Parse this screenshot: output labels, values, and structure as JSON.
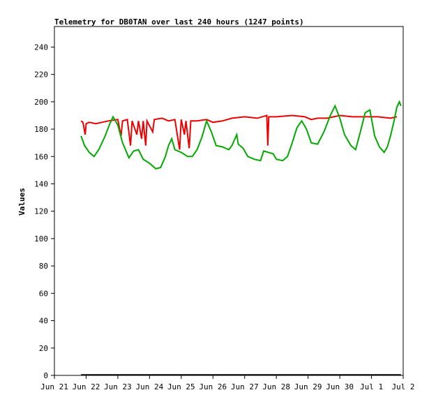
{
  "chart_data": {
    "type": "line",
    "title": "Telemetry for DB0TAN over last 240 hours (1247 points)",
    "xlabel": "",
    "ylabel": "Values",
    "xlim_days": [
      0,
      11
    ],
    "ylim": [
      0,
      255
    ],
    "y_ticks": [
      0,
      20,
      40,
      60,
      80,
      100,
      120,
      140,
      160,
      180,
      200,
      220,
      240
    ],
    "x_ticks": [
      {
        "day": 0,
        "label": "Jun 21"
      },
      {
        "day": 1,
        "label": "Jun 22"
      },
      {
        "day": 2,
        "label": "Jun 23"
      },
      {
        "day": 3,
        "label": "Jun 24"
      },
      {
        "day": 4,
        "label": "Jun 25"
      },
      {
        "day": 5,
        "label": "Jun 26"
      },
      {
        "day": 6,
        "label": "Jun 27"
      },
      {
        "day": 7,
        "label": "Jun 28"
      },
      {
        "day": 8,
        "label": "Jun 29"
      },
      {
        "day": 9,
        "label": "Jun 30"
      },
      {
        "day": 10,
        "label": "Jul 1"
      },
      {
        "day": 11,
        "label": "Jul 2"
      }
    ],
    "grid": false,
    "series": [
      {
        "color": "#ee0000",
        "points": [
          [
            0.84,
            186
          ],
          [
            0.9,
            185
          ],
          [
            0.97,
            176
          ],
          [
            1.0,
            184
          ],
          [
            1.1,
            185
          ],
          [
            1.3,
            184
          ],
          [
            1.5,
            185
          ],
          [
            1.7,
            186
          ],
          [
            2.0,
            187
          ],
          [
            2.1,
            175
          ],
          [
            2.15,
            186
          ],
          [
            2.3,
            187
          ],
          [
            2.4,
            168
          ],
          [
            2.45,
            186
          ],
          [
            2.6,
            176
          ],
          [
            2.65,
            186
          ],
          [
            2.75,
            173
          ],
          [
            2.8,
            186
          ],
          [
            2.88,
            168
          ],
          [
            2.92,
            186
          ],
          [
            3.1,
            178
          ],
          [
            3.15,
            187
          ],
          [
            3.4,
            188
          ],
          [
            3.6,
            186
          ],
          [
            3.8,
            187
          ],
          [
            3.95,
            165
          ],
          [
            4.0,
            187
          ],
          [
            4.1,
            176
          ],
          [
            4.15,
            186
          ],
          [
            4.25,
            166
          ],
          [
            4.3,
            186
          ],
          [
            4.5,
            186
          ],
          [
            4.8,
            187
          ],
          [
            5.0,
            185
          ],
          [
            5.3,
            186
          ],
          [
            5.6,
            188
          ],
          [
            6.0,
            189
          ],
          [
            6.4,
            188
          ],
          [
            6.7,
            190
          ],
          [
            6.73,
            168
          ],
          [
            6.76,
            189
          ],
          [
            7.0,
            189
          ],
          [
            7.5,
            190
          ],
          [
            7.9,
            189
          ],
          [
            8.1,
            187
          ],
          [
            8.3,
            188
          ],
          [
            8.6,
            188
          ],
          [
            9.0,
            190
          ],
          [
            9.4,
            189
          ],
          [
            9.8,
            189
          ],
          [
            10.2,
            189
          ],
          [
            10.6,
            188
          ],
          [
            10.8,
            189
          ]
        ]
      },
      {
        "color": "#00aa00",
        "points": [
          [
            0.84,
            175
          ],
          [
            0.95,
            168
          ],
          [
            1.1,
            163
          ],
          [
            1.25,
            160
          ],
          [
            1.4,
            165
          ],
          [
            1.6,
            175
          ],
          [
            1.75,
            184
          ],
          [
            1.85,
            189
          ],
          [
            2.0,
            183
          ],
          [
            2.15,
            170
          ],
          [
            2.35,
            159
          ],
          [
            2.5,
            164
          ],
          [
            2.65,
            165
          ],
          [
            2.8,
            158
          ],
          [
            3.0,
            155
          ],
          [
            3.2,
            151
          ],
          [
            3.35,
            152
          ],
          [
            3.5,
            160
          ],
          [
            3.6,
            168
          ],
          [
            3.7,
            173
          ],
          [
            3.8,
            165
          ],
          [
            4.0,
            163
          ],
          [
            4.2,
            160
          ],
          [
            4.35,
            160
          ],
          [
            4.5,
            165
          ],
          [
            4.65,
            174
          ],
          [
            4.8,
            186
          ],
          [
            4.95,
            178
          ],
          [
            5.1,
            168
          ],
          [
            5.3,
            167
          ],
          [
            5.5,
            165
          ],
          [
            5.6,
            168
          ],
          [
            5.75,
            176
          ],
          [
            5.8,
            169
          ],
          [
            5.95,
            166
          ],
          [
            6.1,
            160
          ],
          [
            6.3,
            158
          ],
          [
            6.5,
            157
          ],
          [
            6.6,
            164
          ],
          [
            6.75,
            163
          ],
          [
            6.9,
            162
          ],
          [
            7.0,
            158
          ],
          [
            7.2,
            157
          ],
          [
            7.35,
            160
          ],
          [
            7.5,
            170
          ],
          [
            7.65,
            181
          ],
          [
            7.8,
            186
          ],
          [
            7.95,
            180
          ],
          [
            8.1,
            170
          ],
          [
            8.3,
            169
          ],
          [
            8.5,
            178
          ],
          [
            8.7,
            190
          ],
          [
            8.85,
            197
          ],
          [
            9.0,
            188
          ],
          [
            9.15,
            176
          ],
          [
            9.35,
            168
          ],
          [
            9.5,
            165
          ],
          [
            9.65,
            178
          ],
          [
            9.8,
            192
          ],
          [
            9.95,
            194
          ],
          [
            10.1,
            175
          ],
          [
            10.25,
            167
          ],
          [
            10.4,
            163
          ],
          [
            10.5,
            167
          ],
          [
            10.6,
            175
          ],
          [
            10.7,
            185
          ],
          [
            10.8,
            196
          ],
          [
            10.88,
            200
          ],
          [
            10.93,
            197
          ]
        ]
      },
      {
        "color": "#000000",
        "points": [
          [
            0.84,
            0.4
          ],
          [
            10.93,
            0.4
          ]
        ]
      }
    ]
  }
}
